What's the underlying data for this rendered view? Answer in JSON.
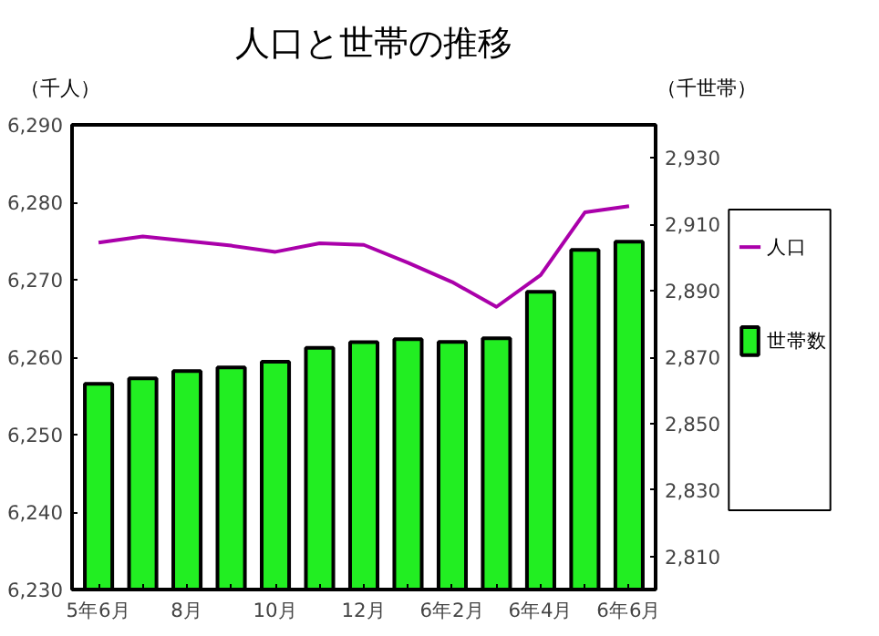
{
  "chart_data": {
    "type": "bar",
    "title": "人口と世帯の推移",
    "ylabel": "（千人）",
    "y2label": "（千世帯）",
    "categories": [
      "5年6月",
      null,
      "8月",
      null,
      "10月",
      null,
      "12月",
      null,
      "6年2月",
      null,
      "6年4月",
      null,
      "6年6月"
    ],
    "series": [
      {
        "name": "世帯数",
        "axis": "y2",
        "color": "#22ee22",
        "values": [
          2862.0,
          2863.6,
          2865.8,
          2866.9,
          2868.6,
          2872.8,
          2874.5,
          2875.4,
          2874.6,
          2875.7,
          2889.7,
          2902.3,
          2904.8
        ]
      },
      {
        "name": "人口",
        "type": "line",
        "color": "#aa00aa",
        "values": [
          6274.8,
          6275.6,
          6275.0,
          6274.4,
          6273.6,
          6274.7,
          6274.5,
          6272.2,
          6269.7,
          6266.5,
          6270.6,
          6278.7,
          6279.5
        ]
      }
    ],
    "ylim": [
      6230,
      6290
    ],
    "yticks": [
      {
        "value": 6230,
        "label": "6,230"
      },
      {
        "value": 6240,
        "label": "6,240"
      },
      {
        "value": 6250,
        "label": "6,250"
      },
      {
        "value": 6260,
        "label": "6,260"
      },
      {
        "value": 6270,
        "label": "6,270"
      },
      {
        "value": 6280,
        "label": "6,280"
      },
      {
        "value": 6290,
        "label": "6,290"
      }
    ],
    "y2lim": [
      2800,
      2940
    ],
    "y2ticks": [
      {
        "value": 2810,
        "label": "2,810"
      },
      {
        "value": 2830,
        "label": "2,830"
      },
      {
        "value": 2850,
        "label": "2,850"
      },
      {
        "value": 2870,
        "label": "2,870"
      },
      {
        "value": 2890,
        "label": "2,890"
      },
      {
        "value": 2910,
        "label": "2,910"
      },
      {
        "value": 2930,
        "label": "2,930"
      }
    ],
    "grid": false,
    "legend": "right"
  }
}
